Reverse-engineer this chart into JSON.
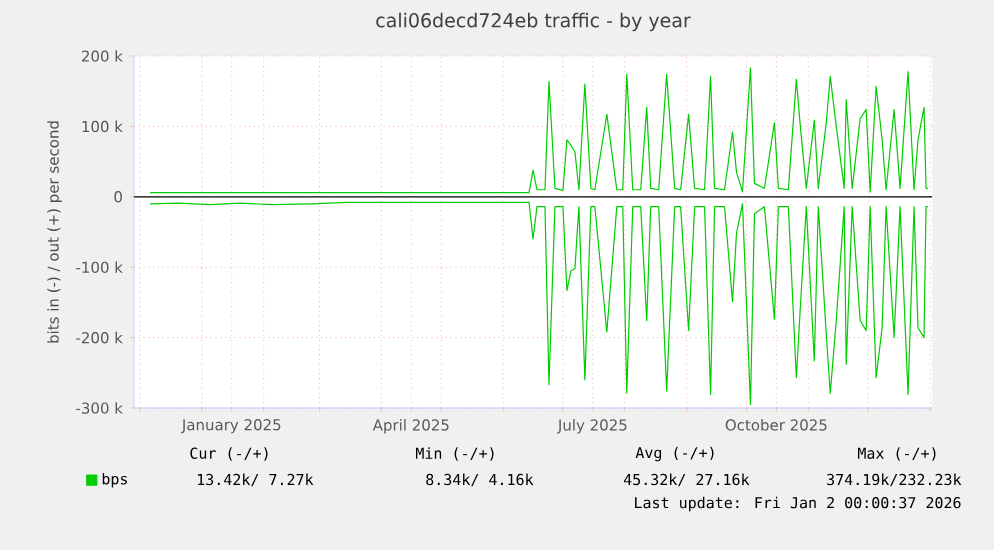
{
  "chart_data": {
    "type": "line",
    "title": "cali06decd724eb traffic - by year",
    "ylabel": "bits in (-) / out (+) per second",
    "x": [
      "2024-12-06",
      "2024-12-20",
      "2025-01-05",
      "2025-01-20",
      "2025-02-05",
      "2025-02-25",
      "2025-03-15",
      "2025-05-01",
      "2025-06-14",
      "2025-06-16",
      "2025-06-18",
      "2025-06-22",
      "2025-06-24",
      "2025-06-27",
      "2025-07-01",
      "2025-07-03",
      "2025-07-05",
      "2025-07-07",
      "2025-07-09",
      "2025-07-12",
      "2025-07-15",
      "2025-07-17",
      "2025-07-23",
      "2025-07-28",
      "2025-07-31",
      "2025-08-02",
      "2025-08-05",
      "2025-08-09",
      "2025-08-12",
      "2025-08-14",
      "2025-08-18",
      "2025-08-22",
      "2025-08-26",
      "2025-08-29",
      "2025-09-02",
      "2025-09-05",
      "2025-09-10",
      "2025-09-13",
      "2025-09-15",
      "2025-09-20",
      "2025-09-24",
      "2025-09-26",
      "2025-09-29",
      "2025-10-03",
      "2025-10-05",
      "2025-10-10",
      "2025-10-15",
      "2025-10-17",
      "2025-10-22",
      "2025-10-26",
      "2025-10-28",
      "2025-10-31",
      "2025-11-04",
      "2025-11-06",
      "2025-11-10",
      "2025-11-12",
      "2025-11-15",
      "2025-11-19",
      "2025-11-20",
      "2025-11-23",
      "2025-11-27",
      "2025-11-30",
      "2025-12-02",
      "2025-12-05",
      "2025-12-08",
      "2025-12-10",
      "2025-12-14",
      "2025-12-17",
      "2025-12-21",
      "2025-12-24",
      "2025-12-26",
      "2025-12-29",
      "2025-12-30",
      "2025-12-31"
    ],
    "series": [
      {
        "name": "bps",
        "color": "#00cc00",
        "values": [
          6,
          6,
          6,
          6,
          6,
          6,
          6,
          6,
          6,
          38,
          10,
          10,
          164,
          12,
          9,
          81,
          73,
          64,
          10,
          160,
          12,
          10,
          117,
          10,
          10,
          174,
          10,
          10,
          127,
          12,
          10,
          174,
          12,
          10,
          117,
          12,
          10,
          171,
          12,
          10,
          92,
          35,
          7,
          183,
          19,
          12,
          105,
          12,
          10,
          167,
          100,
          12,
          109,
          12,
          105,
          171,
          100,
          12,
          138,
          12,
          111,
          124,
          7,
          157,
          81,
          10,
          124,
          12,
          178,
          10,
          81,
          127,
          12,
          12
        ]
      },
      {
        "color": "#00cc00",
        "values": [
          -10,
          -9,
          -11,
          -9,
          -11,
          -10,
          -8,
          -8,
          -8,
          -60,
          -14,
          -14,
          -267,
          -14,
          -14,
          -133,
          -105,
          -102,
          -14,
          -260,
          -14,
          -14,
          -192,
          -14,
          -14,
          -279,
          -14,
          -14,
          -176,
          -14,
          -14,
          -276,
          -14,
          -14,
          -190,
          -14,
          -14,
          -281,
          -14,
          -14,
          -149,
          -52,
          -10,
          -295,
          -24,
          -14,
          -174,
          -14,
          -14,
          -257,
          -157,
          -14,
          -233,
          -14,
          -195,
          -279,
          -176,
          -14,
          -238,
          -14,
          -176,
          -190,
          -14,
          -257,
          -186,
          -14,
          -200,
          -14,
          -281,
          -14,
          -186,
          -200,
          -14,
          -14
        ]
      }
    ],
    "xlim": [
      "2024-11-28",
      "2026-01-02"
    ],
    "xticks": [
      {
        "value": "2024-12-01",
        "label": null
      },
      {
        "value": "2025-01-01",
        "label": null
      },
      {
        "value": "2025-02-01",
        "label": null
      },
      {
        "value": "2025-03-01",
        "label": null
      },
      {
        "value": "2025-04-01",
        "label": null
      },
      {
        "value": "2025-05-01",
        "label": null
      },
      {
        "value": "2025-06-01",
        "label": null
      },
      {
        "value": "2025-07-01",
        "label": null
      },
      {
        "value": "2025-08-01",
        "label": null
      },
      {
        "value": "2025-09-01",
        "label": null
      },
      {
        "value": "2025-10-01",
        "label": null
      },
      {
        "value": "2025-11-01",
        "label": null
      },
      {
        "value": "2025-12-01",
        "label": null
      },
      {
        "value": "2026-01-01",
        "label": null
      },
      {
        "value": "2025-01-16",
        "label": "January 2025"
      },
      {
        "value": "2025-04-16",
        "label": "April 2025"
      },
      {
        "value": "2025-07-16",
        "label": "July 2025"
      },
      {
        "value": "2025-10-16",
        "label": "October 2025"
      }
    ],
    "ylim": [
      -300,
      200
    ],
    "yticks": [
      {
        "value": -300,
        "label": "-300 k"
      },
      {
        "value": -200,
        "label": "-200 k"
      },
      {
        "value": -100,
        "label": "-100 k"
      },
      0,
      {
        "value": 100,
        "label": "100 k"
      },
      {
        "value": 200,
        "label": "200 k"
      }
    ],
    "ref_lines": [
      {
        "axis": "y",
        "value": 0,
        "color": "#000000"
      }
    ],
    "grid": true,
    "legend": "bottom left",
    "annotations": [
      "Cur (-/+)",
      "Min (-/+)",
      "Avg (-/+)",
      "Max (-/+)",
      "13.42k/ 7.27k",
      "8.34k/ 4.16k",
      "45.32k/ 27.16k",
      "374.19k/232.23k",
      "Last update: Fri Jan 2 00:00:37 2026"
    ]
  }
}
